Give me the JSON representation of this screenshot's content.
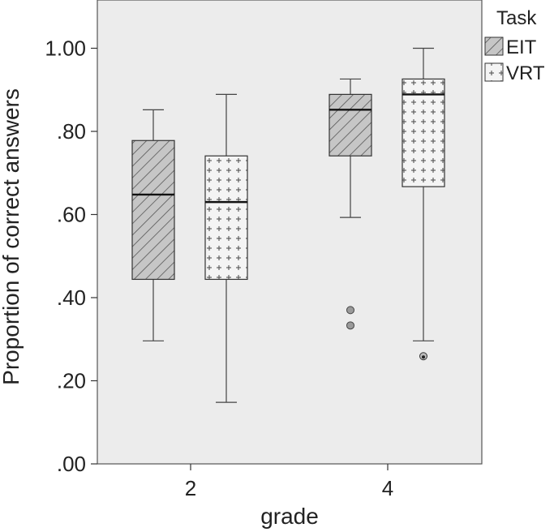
{
  "chart_data": {
    "type": "boxplot",
    "xlabel": "grade",
    "ylabel": "Proportion of correct answers",
    "categories": [
      "2",
      "4"
    ],
    "ylim": [
      0.0,
      1.1
    ],
    "yticks": [
      0.0,
      0.2,
      0.4,
      0.6,
      0.8,
      1.0
    ],
    "ytick_labels": [
      ".00",
      ".20",
      ".40",
      ".60",
      ".80",
      "1.00"
    ],
    "grid": false,
    "legend": {
      "title": "Task",
      "position": "right",
      "entries": [
        "EIT",
        "VRT"
      ]
    },
    "series": [
      {
        "name": "EIT",
        "pattern": "diagonal-hatch",
        "boxes": [
          {
            "category": "2",
            "whisker_low": 0.296,
            "q1": 0.444,
            "median": 0.648,
            "q3": 0.778,
            "whisker_high": 0.852,
            "outliers": [],
            "extremes": []
          },
          {
            "category": "4",
            "whisker_low": 0.593,
            "q1": 0.741,
            "median": 0.852,
            "q3": 0.889,
            "whisker_high": 0.926,
            "outliers": [
              0.37,
              0.333
            ],
            "extremes": []
          }
        ]
      },
      {
        "name": "VRT",
        "pattern": "plus-dots",
        "boxes": [
          {
            "category": "2",
            "whisker_low": 0.148,
            "q1": 0.444,
            "median": 0.63,
            "q3": 0.741,
            "whisker_high": 0.889,
            "outliers": [],
            "extremes": []
          },
          {
            "category": "4",
            "whisker_low": 0.296,
            "q1": 0.667,
            "median": 0.889,
            "q3": 0.926,
            "whisker_high": 1.0,
            "outliers": [],
            "extremes": [
              0.259
            ]
          }
        ]
      }
    ]
  },
  "colors": {
    "plot_background": "#ececec",
    "box_fill": "#c8c8c8",
    "line": "#333333"
  }
}
